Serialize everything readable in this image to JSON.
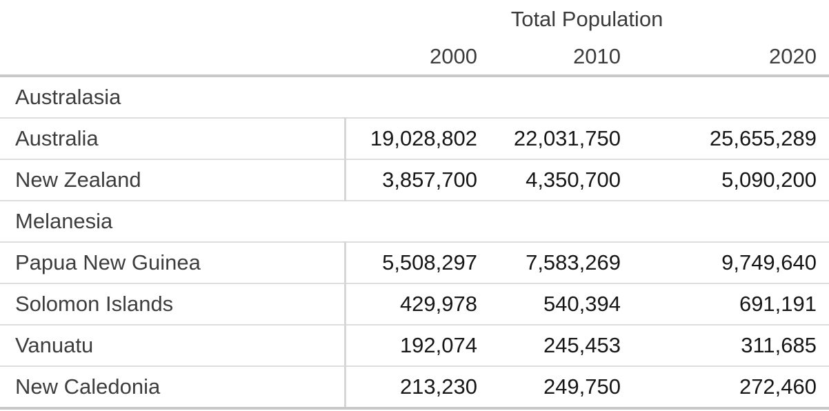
{
  "table": {
    "title": "Total Population",
    "years": [
      "2000",
      "2010",
      "2020"
    ],
    "groups": [
      {
        "name": "Australasia",
        "rows": [
          {
            "country": "Australia",
            "values": [
              "19,028,802",
              "22,031,750",
              "25,655,289"
            ]
          },
          {
            "country": "New Zealand",
            "values": [
              "3,857,700",
              "4,350,700",
              "5,090,200"
            ]
          }
        ]
      },
      {
        "name": "Melanesia",
        "rows": [
          {
            "country": "Papua New Guinea",
            "values": [
              "5,508,297",
              "7,583,269",
              "9,749,640"
            ]
          },
          {
            "country": "Solomon Islands",
            "values": [
              "429,978",
              "540,394",
              "691,191"
            ]
          },
          {
            "country": "Vanuatu",
            "values": [
              "192,074",
              "245,453",
              "311,685"
            ]
          },
          {
            "country": "New Caledonia",
            "values": [
              "213,230",
              "249,750",
              "272,460"
            ]
          }
        ]
      }
    ]
  },
  "colors": {
    "label_text": "#3d3d3d",
    "number_text": "#161616",
    "inner_rule": "#dcdcdc",
    "outer_rule": "#c9c9c9",
    "column_divider": "#d6d6d6",
    "background": "#ffffff"
  },
  "chart_data": {
    "type": "table",
    "title": "Total Population",
    "columns": [
      "Country",
      "2000",
      "2010",
      "2020"
    ],
    "groups": [
      {
        "group": "Australasia",
        "rows": [
          [
            "Australia",
            19028802,
            22031750,
            25655289
          ],
          [
            "New Zealand",
            3857700,
            4350700,
            5090200
          ]
        ]
      },
      {
        "group": "Melanesia",
        "rows": [
          [
            "Papua New Guinea",
            5508297,
            7583269,
            9749640
          ],
          [
            "Solomon Islands",
            429978,
            540394,
            691191
          ],
          [
            "Vanuatu",
            192074,
            245453,
            311685
          ],
          [
            "New Caledonia",
            213230,
            249750,
            272460
          ]
        ]
      }
    ],
    "layout": {
      "group_rows_span_full_width": true,
      "numeric_alignment": "right",
      "grid": "horizontal rules between rows; vertical divider after country column on data rows only"
    }
  }
}
